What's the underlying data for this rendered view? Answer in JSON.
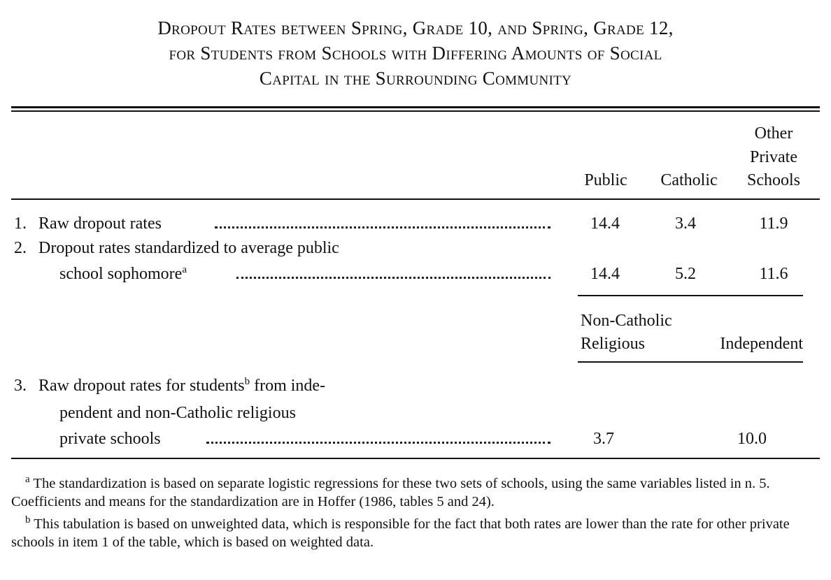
{
  "title": {
    "line1": "Dropout Rates between Spring, Grade 10, and Spring, Grade 12,",
    "line2": "for Students from Schools with Differing Amounts of Social",
    "line3": "Capital in the Surrounding Community"
  },
  "columns": {
    "public": "Public",
    "catholic": "Catholic",
    "other_private": [
      "Other",
      "Private",
      "Schools"
    ]
  },
  "sub_columns": {
    "non_catholic_religious": [
      "Non-Catholic",
      "Religious"
    ],
    "independent": "Independent"
  },
  "rows": [
    {
      "number": "1.",
      "label": "Raw dropout rates",
      "public": "14.4",
      "catholic": "3.4",
      "other_private": "11.9"
    },
    {
      "number": "2.",
      "label_line1": "Dropout rates standardized to average public",
      "label_line2": "school sophomore",
      "note": "a",
      "public": "14.4",
      "catholic": "5.2",
      "other_private": "11.6"
    },
    {
      "number": "3.",
      "label_line1_pre": "Raw dropout rates for students",
      "note": "b",
      "label_line1_post": " from inde-",
      "label_line2": "pendent and non-Catholic religious",
      "label_line3": "private schools",
      "non_catholic_religious": "3.7",
      "independent": "10.0"
    }
  ],
  "footnotes": [
    {
      "mark": "a",
      "text": " The standardization is based on separate logistic regressions for these two sets of schools, using the same variables listed in n. 5. Coefficients and means for the standardization are in Hoffer (1986, tables 5 and 24)."
    },
    {
      "mark": "b",
      "text": " This tabulation is based on unweighted data, which is responsible for the fact that both rates are lower than the rate for other private schools in item 1 of the table, which is based on weighted data."
    }
  ],
  "chart_data": {
    "type": "table",
    "title": "Dropout Rates between Spring, Grade 10, and Spring, Grade 12, for Students from Schools with Differing Amounts of Social Capital in the Surrounding Community",
    "tables": [
      {
        "columns": [
          "Public",
          "Catholic",
          "Other Private Schools"
        ],
        "rows": [
          {
            "label": "Raw dropout rates",
            "values": [
              14.4,
              3.4,
              11.9
            ]
          },
          {
            "label": "Dropout rates standardized to average public school sophomore",
            "values": [
              14.4,
              5.2,
              11.6
            ]
          }
        ]
      },
      {
        "columns": [
          "Non-Catholic Religious",
          "Independent"
        ],
        "rows": [
          {
            "label": "Raw dropout rates for students from independent and non-Catholic religious private schools",
            "values": [
              3.7,
              10.0
            ]
          }
        ]
      }
    ]
  }
}
